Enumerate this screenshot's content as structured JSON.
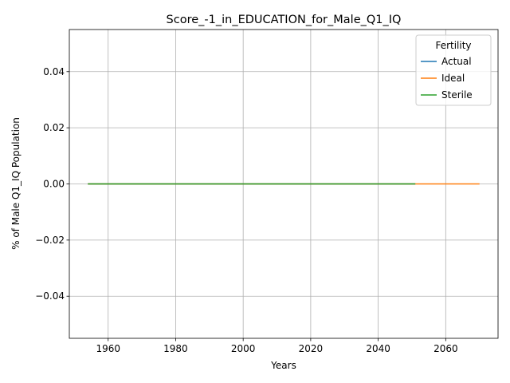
{
  "chart_data": {
    "type": "line",
    "title": "Score_-1_in_EDUCATION_for_Male_Q1_IQ",
    "xlabel": "Years",
    "ylabel": "% of Male Q1_IQ Population",
    "xlim": [
      1948.5,
      2075.5
    ],
    "ylim": [
      -0.055,
      0.055
    ],
    "x_ticks": [
      1960,
      1980,
      2000,
      2020,
      2040,
      2060
    ],
    "y_ticks": [
      -0.04,
      -0.02,
      0.0,
      0.02,
      0.04
    ],
    "y_tick_labels": [
      "−0.04",
      "−0.02",
      "0.00",
      "0.02",
      "0.04"
    ],
    "grid": true,
    "legend": {
      "title": "Fertility",
      "placement": "top-right"
    },
    "series": [
      {
        "name": "Actual",
        "color": "#1f77b4",
        "x": [
          1954,
          2051
        ],
        "y": [
          0.0,
          0.0
        ]
      },
      {
        "name": "Ideal",
        "color": "#ff7f0e",
        "x": [
          1954,
          2070
        ],
        "y": [
          0.0,
          0.0
        ]
      },
      {
        "name": "Sterile",
        "color": "#2ca02c",
        "x": [
          1954,
          2051
        ],
        "y": [
          0.0,
          0.0
        ]
      }
    ]
  }
}
